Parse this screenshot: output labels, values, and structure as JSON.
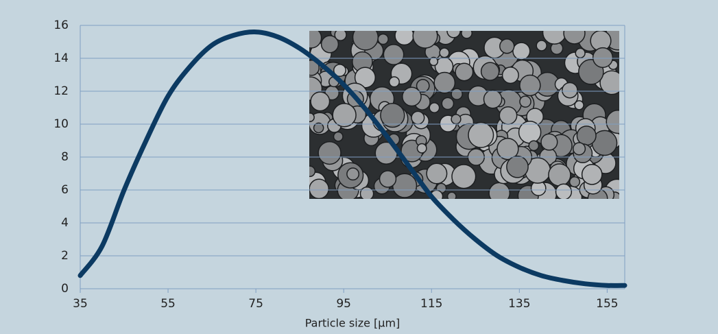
{
  "chart_data": {
    "type": "line",
    "x_label": "Particle size [µm]",
    "x": [
      35,
      40,
      45,
      50,
      55,
      60,
      65,
      70,
      75,
      80,
      85,
      90,
      95,
      100,
      105,
      110,
      115,
      120,
      125,
      130,
      135,
      140,
      145,
      150,
      155,
      159
    ],
    "series": [
      {
        "color": "#0c3a62",
        "values": [
          0.8,
          2.6,
          6.0,
          9.0,
          11.7,
          13.5,
          14.8,
          15.4,
          15.6,
          15.3,
          14.6,
          13.6,
          12.4,
          10.9,
          9.2,
          7.4,
          5.6,
          4.2,
          3.0,
          2.0,
          1.3,
          0.8,
          0.5,
          0.3,
          0.2,
          0.2
        ]
      }
    ],
    "xlim": [
      35,
      159
    ],
    "xticks": [
      35,
      55,
      75,
      95,
      115,
      135,
      155
    ],
    "ylim": [
      0,
      16
    ],
    "yticks": [
      0,
      2,
      4,
      6,
      8,
      10,
      12,
      14,
      16
    ],
    "grid": true
  }
}
